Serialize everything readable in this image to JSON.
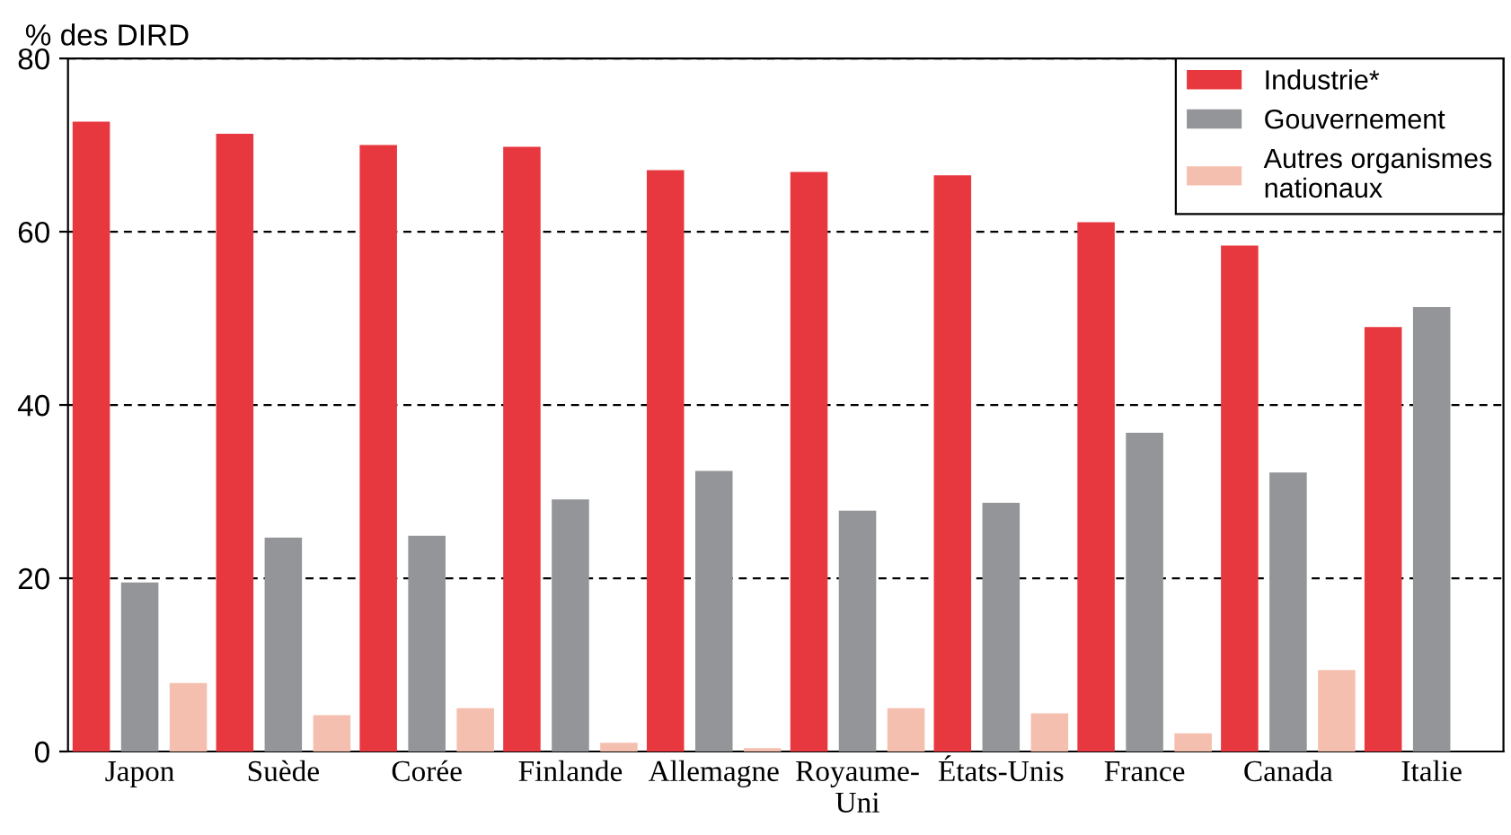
{
  "chart_data": {
    "type": "bar",
    "ylabel": "% des DIRD",
    "categories": [
      "Japon",
      "Suède",
      "Corée",
      "Finlande",
      "Allemagne",
      "Royaume-\nUni",
      "États-Unis",
      "France",
      "Canada",
      "Italie"
    ],
    "series": [
      {
        "name": "Industrie*",
        "color": "#e8383f",
        "values": [
          72.7,
          71.3,
          70.0,
          69.8,
          67.1,
          66.9,
          66.5,
          61.1,
          58.4,
          49.0
        ]
      },
      {
        "name": "Gouvernement",
        "color": "#939598",
        "values": [
          19.5,
          24.7,
          24.9,
          29.1,
          32.4,
          27.8,
          28.7,
          36.8,
          32.2,
          51.3
        ]
      },
      {
        "name": "Autres organismes\nnationaux",
        "color": "#f5bfb0",
        "values": [
          7.9,
          4.2,
          5.0,
          1.0,
          0.4,
          5.0,
          4.4,
          2.1,
          9.4,
          null
        ]
      }
    ],
    "ylim": [
      0,
      80
    ],
    "yticks": [
      0,
      20,
      40,
      60,
      80
    ],
    "grid": "y",
    "legend": "top right"
  }
}
